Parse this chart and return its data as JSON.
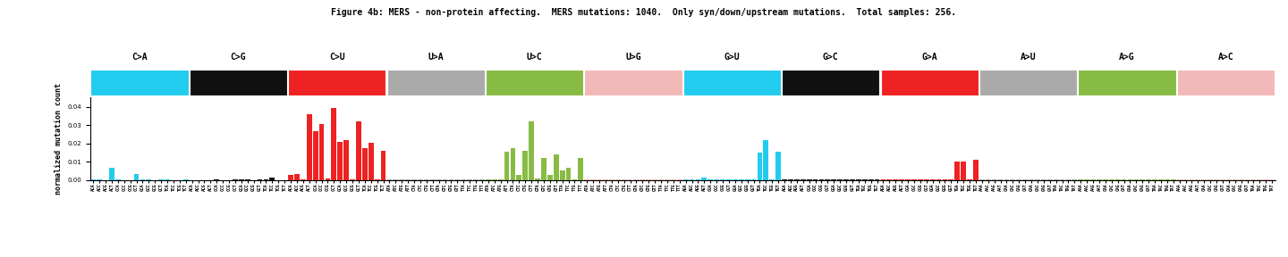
{
  "title": "Figure 4b: MERS - non-protein affecting.  MERS mutations: 1040.  Only syn/down/upstream mutations.  Total samples: 256.",
  "ylabel": "normalized mutation count",
  "ylim": [
    0,
    0.045
  ],
  "mutation_types": [
    "C>A",
    "C>G",
    "C>U",
    "U>A",
    "U>C",
    "U>G",
    "G>U",
    "G>C",
    "G>A",
    "A>U",
    "A>G",
    "A>C"
  ],
  "bar_colors": [
    "#22ccee",
    "#111111",
    "#ee2222",
    "#aaaaaa",
    "#88bb44",
    "#f2b8b8",
    "#22ccee",
    "#111111",
    "#ee2222",
    "#aaaaaa",
    "#88bb44",
    "#f2b8b8"
  ],
  "contexts_C": [
    "ACA",
    "ACC",
    "ACG",
    "ACT",
    "CCA",
    "CCC",
    "CCG",
    "CCT",
    "GCA",
    "GCC",
    "GCG",
    "GCT",
    "TCA",
    "TCC",
    "TCG",
    "TCT"
  ],
  "contexts_U": [
    "ATA",
    "ATC",
    "ATG",
    "ATT",
    "CTA",
    "CTC",
    "CTG",
    "CTT",
    "GTA",
    "GTC",
    "GTG",
    "GTT",
    "TTA",
    "TTC",
    "TTG",
    "TTT"
  ],
  "contexts_G": [
    "AGA",
    "AGC",
    "AGG",
    "AGT",
    "CGA",
    "CGC",
    "CGG",
    "CGT",
    "GGA",
    "GGC",
    "GGG",
    "GGT",
    "TGA",
    "TGC",
    "TGG",
    "TGT"
  ],
  "contexts_A": [
    "AAA",
    "AAC",
    "AAG",
    "AAT",
    "CAA",
    "CAC",
    "CAG",
    "CAT",
    "GAA",
    "GAC",
    "GAG",
    "GAT",
    "TAA",
    "TAC",
    "TAG",
    "TAT"
  ],
  "values": {
    "C>A": [
      0.0001,
      0.0005,
      0.0,
      0.0066,
      0.0001,
      0.0,
      0.0,
      0.003,
      0.0001,
      0.0001,
      0.0,
      0.0001,
      0.0001,
      0.0,
      0.0,
      0.0001
    ],
    "C>G": [
      0.0,
      0.0,
      0.0,
      0.0,
      0.0001,
      0.0,
      0.0,
      0.0001,
      0.0001,
      0.0001,
      0.0,
      0.0001,
      0.0001,
      0.0012,
      0.0,
      0.0
    ],
    "C>U": [
      0.0025,
      0.0031,
      0.0001,
      0.0358,
      0.0268,
      0.0308,
      0.001,
      0.0395,
      0.021,
      0.0216,
      0.0002,
      0.0322,
      0.0172,
      0.0205,
      0.0003,
      0.0158
    ],
    "U>A": [
      0.0001,
      0.0001,
      0.0001,
      0.0002,
      0.0001,
      0.0001,
      0.0001,
      0.0001,
      0.0002,
      0.0001,
      0.0001,
      0.0001,
      0.0002,
      0.0001,
      0.0001,
      0.0001
    ],
    "U>C": [
      0.0001,
      0.0001,
      0.0001,
      0.0155,
      0.0172,
      0.0025,
      0.0158,
      0.0322,
      0.001,
      0.012,
      0.0025,
      0.014,
      0.005,
      0.0065,
      0.0001,
      0.012
    ],
    "U>G": [
      0.0001,
      0.0001,
      0.0001,
      0.0001,
      0.0001,
      0.0001,
      0.0001,
      0.0002,
      0.0001,
      0.0001,
      0.0001,
      0.0001,
      0.0002,
      0.0001,
      0.0001,
      0.0001
    ],
    "G>U": [
      0.0001,
      0.0001,
      0.0001,
      0.0015,
      0.0001,
      0.0001,
      0.0001,
      0.0001,
      0.0001,
      0.0001,
      0.0001,
      0.0001,
      0.015,
      0.022,
      0.0001,
      0.0155
    ],
    "G>C": [
      0.0001,
      0.0001,
      0.0001,
      0.0001,
      0.0001,
      0.0001,
      0.0001,
      0.0001,
      0.0001,
      0.0001,
      0.0001,
      0.0001,
      0.0001,
      0.0001,
      0.0001,
      0.0001
    ],
    "G>A": [
      0.0001,
      0.0001,
      0.0001,
      0.0001,
      0.0001,
      0.0001,
      0.0001,
      0.0001,
      0.0001,
      0.0001,
      0.0001,
      0.0001,
      0.01,
      0.01,
      0.0001,
      0.011
    ],
    "A>U": [
      0.0001,
      0.0001,
      0.0001,
      0.0001,
      0.0001,
      0.0001,
      0.0001,
      0.0001,
      0.0001,
      0.0001,
      0.0001,
      0.0001,
      0.0001,
      0.0001,
      0.0001,
      0.0001
    ],
    "A>G": [
      0.0001,
      0.0001,
      0.0001,
      0.0001,
      0.0001,
      0.0001,
      0.0001,
      0.0001,
      0.0001,
      0.0001,
      0.0001,
      0.0001,
      0.0001,
      0.0001,
      0.0001,
      0.0001
    ],
    "A>C": [
      0.0001,
      0.0001,
      0.0001,
      0.0001,
      0.0001,
      0.0001,
      0.0001,
      0.0001,
      0.0001,
      0.0001,
      0.0001,
      0.0001,
      0.0001,
      0.0001,
      0.0001,
      0.0001
    ]
  },
  "yticks": [
    0.0,
    0.01,
    0.02,
    0.03,
    0.04
  ],
  "title_fontsize": 7,
  "ylabel_fontsize": 6,
  "tick_fontsize": 5,
  "xtick_fontsize": 3.5,
  "header_label_fontsize": 7
}
